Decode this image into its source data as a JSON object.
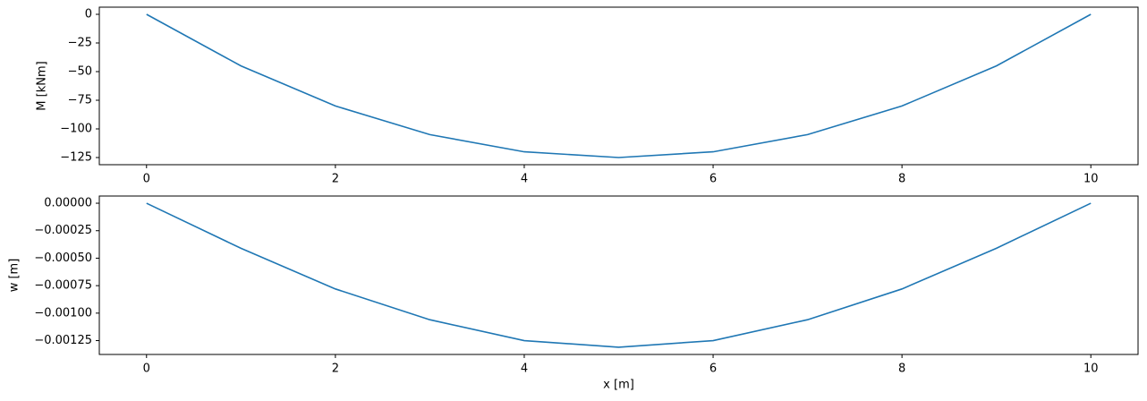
{
  "chart_data": [
    {
      "type": "line",
      "ylabel": "M [kNm]",
      "x": [
        0,
        1,
        2,
        3,
        4,
        5,
        6,
        7,
        8,
        9,
        10
      ],
      "series": [
        {
          "color": "#1f77b4",
          "values": [
            0,
            -45,
            -80,
            -105,
            -120,
            -125,
            -120,
            -105,
            -80,
            -45,
            0
          ]
        }
      ],
      "xlim": [
        -0.5,
        10.5
      ],
      "xticks": [
        0,
        2,
        4,
        6,
        8,
        10
      ],
      "ylim": [
        -131.25,
        6.25
      ],
      "yticks": [
        0,
        {
          "value": -25,
          "label": "−25"
        },
        {
          "value": -50,
          "label": "−50"
        },
        {
          "value": -75,
          "label": "−75"
        },
        {
          "value": -100,
          "label": "−100"
        },
        {
          "value": -125,
          "label": "−125"
        }
      ]
    },
    {
      "type": "line",
      "ylabel": "w [m]",
      "xlabel": "x [m]",
      "x": [
        0,
        1,
        2,
        3,
        4,
        5,
        6,
        7,
        8,
        9,
        10
      ],
      "series": [
        {
          "color": "#1f77b4",
          "values": [
            0,
            -0.00041,
            -0.00078,
            -0.00106,
            -0.00125,
            -0.00131,
            -0.00125,
            -0.00106,
            -0.00078,
            -0.00041,
            0
          ]
        }
      ],
      "xlim": [
        -0.5,
        10.5
      ],
      "xticks": [
        0,
        2,
        4,
        6,
        8,
        10
      ],
      "ylim": [
        -0.001376,
        6.55e-05
      ],
      "yticks": [
        {
          "value": 0,
          "label": "0.00000"
        },
        {
          "value": -0.00025,
          "label": "−0.00025"
        },
        {
          "value": -0.0005,
          "label": "−0.00050"
        },
        {
          "value": -0.00075,
          "label": "−0.00075"
        },
        {
          "value": -0.001,
          "label": "−0.00100"
        },
        {
          "value": -0.00125,
          "label": "−0.00125"
        }
      ]
    }
  ]
}
